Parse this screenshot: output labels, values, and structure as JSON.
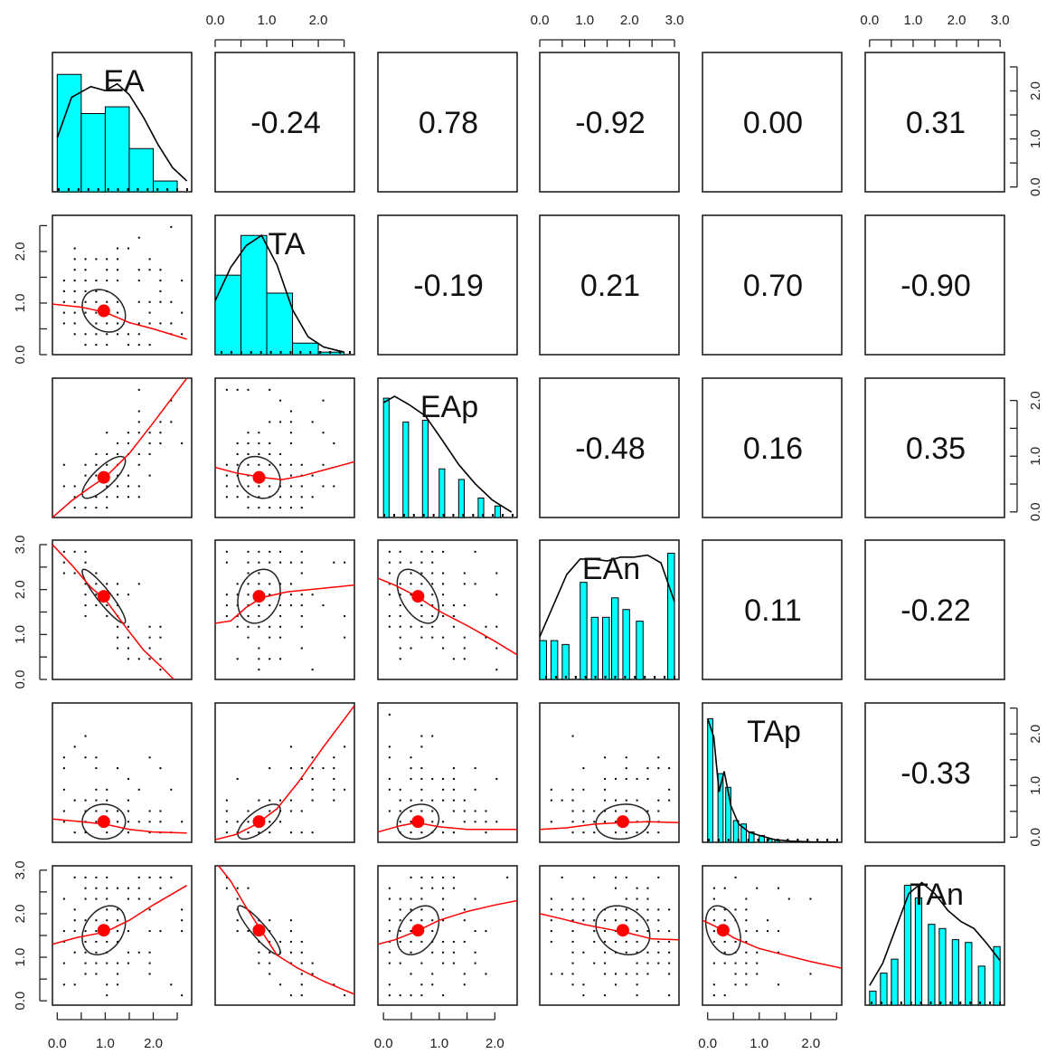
{
  "chart_data": {
    "type": "scatter-matrix",
    "variables": [
      "EA",
      "TA",
      "EAp",
      "EAn",
      "TAp",
      "TAn"
    ],
    "ranges": {
      "EA": [
        -0.1,
        2.8
      ],
      "TA": [
        0.0,
        2.7
      ],
      "EAp": [
        -0.1,
        2.4
      ],
      "EAn": [
        0.0,
        3.1
      ],
      "TAp": [
        -0.1,
        2.6
      ],
      "TAn": [
        -0.1,
        3.1
      ]
    },
    "axis_ticks": {
      "top": {
        "TA": [
          "0.0",
          "1.0",
          "2.0"
        ],
        "EAn": [
          "0.0",
          "1.0",
          "2.0",
          "3.0"
        ],
        "TAn": [
          "0.0",
          "1.0",
          "2.0",
          "3.0"
        ]
      },
      "bottom": {
        "EA": [
          "0.0",
          "1.0",
          "2.0"
        ],
        "EAp": [
          "0.0",
          "1.0",
          "2.0"
        ],
        "TAp": [
          "0.0",
          "1.0",
          "2.0"
        ]
      },
      "left": {
        "TA": [
          "0.0",
          "1.0",
          "2.0"
        ],
        "EAn": [
          "0.0",
          "1.0",
          "2.0",
          "3.0"
        ],
        "TAn": [
          "0.0",
          "1.0",
          "2.0",
          "3.0"
        ]
      },
      "right": {
        "EA": [
          "0.0",
          "1.0",
          "2.0"
        ],
        "EAp": [
          "0.0",
          "1.0",
          "2.0"
        ],
        "TAp": [
          "0.0",
          "1.0",
          "2.0"
        ]
      }
    },
    "correlations": [
      {
        "row": "EA",
        "col": "TA",
        "text": "-0.24",
        "value": -0.24
      },
      {
        "row": "EA",
        "col": "EAp",
        "text": "0.78",
        "value": 0.78
      },
      {
        "row": "EA",
        "col": "EAn",
        "text": "-0.92",
        "value": -0.92
      },
      {
        "row": "EA",
        "col": "TAp",
        "text": "0.00",
        "value": 0.0
      },
      {
        "row": "EA",
        "col": "TAn",
        "text": "0.31",
        "value": 0.31
      },
      {
        "row": "TA",
        "col": "EAp",
        "text": "-0.19",
        "value": -0.19
      },
      {
        "row": "TA",
        "col": "EAn",
        "text": "0.21",
        "value": 0.21
      },
      {
        "row": "TA",
        "col": "TAp",
        "text": "0.70",
        "value": 0.7
      },
      {
        "row": "TA",
        "col": "TAn",
        "text": "-0.90",
        "value": -0.9
      },
      {
        "row": "EAp",
        "col": "EAn",
        "text": "-0.48",
        "value": -0.48
      },
      {
        "row": "EAp",
        "col": "TAp",
        "text": "0.16",
        "value": 0.16
      },
      {
        "row": "EAp",
        "col": "TAn",
        "text": "0.35",
        "value": 0.35
      },
      {
        "row": "EAn",
        "col": "TAp",
        "text": "0.11",
        "value": 0.11
      },
      {
        "row": "EAn",
        "col": "TAn",
        "text": "-0.22",
        "value": -0.22
      },
      {
        "row": "TAp",
        "col": "TAn",
        "text": "-0.33",
        "value": -0.33
      }
    ],
    "histograms": {
      "EA": {
        "breaks": [
          0.0,
          0.5,
          1.0,
          1.5,
          2.0,
          2.5
        ],
        "density": [
          0.87,
          0.58,
          0.63,
          0.32,
          0.08
        ],
        "density_curve": [
          [
            0.0,
            0.4
          ],
          [
            0.3,
            0.7
          ],
          [
            0.7,
            0.78
          ],
          [
            1.0,
            0.75
          ],
          [
            1.25,
            0.8
          ],
          [
            1.5,
            0.72
          ],
          [
            1.8,
            0.55
          ],
          [
            2.1,
            0.35
          ],
          [
            2.4,
            0.18
          ],
          [
            2.7,
            0.08
          ]
        ]
      },
      "TA": {
        "breaks": [
          0.0,
          0.5,
          1.0,
          1.5,
          2.0,
          2.5
        ],
        "density": [
          0.62,
          0.93,
          0.48,
          0.09,
          0.02
        ],
        "density_curve": [
          [
            0.0,
            0.42
          ],
          [
            0.3,
            0.68
          ],
          [
            0.6,
            0.85
          ],
          [
            0.9,
            0.93
          ],
          [
            1.2,
            0.7
          ],
          [
            1.5,
            0.35
          ],
          [
            1.8,
            0.14
          ],
          [
            2.1,
            0.06
          ],
          [
            2.5,
            0.02
          ]
        ]
      },
      "EAp": {
        "breaks": [
          0.0,
          0.1,
          0.35,
          0.45,
          0.7,
          0.8,
          1.0,
          1.1,
          1.35,
          1.45,
          1.7,
          1.8,
          2.0,
          2.1
        ],
        "density": [
          1.35,
          0,
          1.08,
          0,
          1.1,
          0,
          0.55,
          0,
          0.43,
          0,
          0.22,
          0,
          0.13
        ],
        "bars": [
          [
            0.0,
            0.1,
            1.35
          ],
          [
            0.35,
            0.45,
            1.08
          ],
          [
            0.7,
            0.8,
            1.1
          ],
          [
            1.0,
            1.1,
            0.55
          ],
          [
            1.35,
            1.45,
            0.43
          ],
          [
            1.7,
            1.8,
            0.22
          ],
          [
            2.0,
            2.1,
            0.13
          ]
        ],
        "density_curve": [
          [
            0.0,
            1.3
          ],
          [
            0.2,
            1.37
          ],
          [
            0.45,
            1.28
          ],
          [
            0.75,
            1.15
          ],
          [
            1.05,
            0.88
          ],
          [
            1.35,
            0.6
          ],
          [
            1.65,
            0.38
          ],
          [
            1.95,
            0.2
          ],
          [
            2.3,
            0.06
          ]
        ]
      },
      "EAn": {
        "bars": [
          [
            0.0,
            0.15,
            0.2
          ],
          [
            0.25,
            0.4,
            0.2
          ],
          [
            0.5,
            0.65,
            0.18
          ],
          [
            0.9,
            1.05,
            0.5
          ],
          [
            1.15,
            1.3,
            0.32
          ],
          [
            1.4,
            1.55,
            0.32
          ],
          [
            1.6,
            1.75,
            0.42
          ],
          [
            1.85,
            2.0,
            0.36
          ],
          [
            2.15,
            2.3,
            0.3
          ],
          [
            2.85,
            3.0,
            0.65
          ]
        ],
        "density_curve": [
          [
            0.0,
            0.22
          ],
          [
            0.3,
            0.38
          ],
          [
            0.6,
            0.54
          ],
          [
            0.9,
            0.62
          ],
          [
            1.2,
            0.62
          ],
          [
            1.5,
            0.61
          ],
          [
            1.8,
            0.63
          ],
          [
            2.1,
            0.63
          ],
          [
            2.4,
            0.64
          ],
          [
            2.7,
            0.6
          ],
          [
            3.0,
            0.4
          ]
        ]
      },
      "TAp": {
        "bars": [
          [
            0.0,
            0.1,
            5.4
          ],
          [
            0.2,
            0.3,
            3.0
          ],
          [
            0.35,
            0.45,
            2.4
          ],
          [
            0.5,
            0.6,
            0.95
          ],
          [
            0.65,
            0.75,
            0.8
          ],
          [
            0.8,
            0.9,
            0.45
          ],
          [
            1.0,
            1.1,
            0.3
          ],
          [
            1.15,
            1.25,
            0.15
          ],
          [
            1.3,
            1.4,
            0.08
          ]
        ],
        "density_curve": [
          [
            0.0,
            5.4
          ],
          [
            0.12,
            4.6
          ],
          [
            0.22,
            2.2
          ],
          [
            0.32,
            3.1
          ],
          [
            0.45,
            1.6
          ],
          [
            0.6,
            0.8
          ],
          [
            0.8,
            0.45
          ],
          [
            1.0,
            0.3
          ],
          [
            1.3,
            0.12
          ],
          [
            1.6,
            0.05
          ],
          [
            2.0,
            0.02
          ],
          [
            2.5,
            0.01
          ]
        ]
      },
      "TAn": {
        "bars": [
          [
            0.0,
            0.15,
            0.1
          ],
          [
            0.25,
            0.4,
            0.23
          ],
          [
            0.5,
            0.65,
            0.33
          ],
          [
            0.8,
            0.95,
            0.86
          ],
          [
            1.05,
            1.2,
            0.77
          ],
          [
            1.35,
            1.5,
            0.58
          ],
          [
            1.6,
            1.75,
            0.55
          ],
          [
            1.9,
            2.05,
            0.47
          ],
          [
            2.2,
            2.35,
            0.45
          ],
          [
            2.5,
            2.65,
            0.28
          ],
          [
            2.85,
            3.0,
            0.42
          ]
        ],
        "density_curve": [
          [
            0.0,
            0.14
          ],
          [
            0.3,
            0.3
          ],
          [
            0.6,
            0.55
          ],
          [
            0.9,
            0.8
          ],
          [
            1.2,
            0.88
          ],
          [
            1.5,
            0.8
          ],
          [
            1.8,
            0.68
          ],
          [
            2.1,
            0.6
          ],
          [
            2.4,
            0.55
          ],
          [
            2.7,
            0.44
          ],
          [
            3.0,
            0.32
          ]
        ]
      }
    },
    "hist_ymax": {
      "EA": 0.95,
      "TA": 1.0,
      "EAp": 1.45,
      "EAn": 0.66,
      "TAp": 5.6,
      "TAn": 0.92
    },
    "means": {
      "EA": 0.97,
      "TA": 0.85,
      "EAp": 0.62,
      "EAn": 1.85,
      "TAp": 0.3,
      "TAn": 1.62
    },
    "sds": {
      "EA": 0.6,
      "TA": 0.55,
      "EAp": 0.5,
      "EAn": 0.8,
      "TAp": 0.45,
      "TAn": 0.75
    },
    "correlation_matrix": [
      [
        1.0,
        -0.24,
        0.78,
        -0.92,
        0.0,
        0.31
      ],
      [
        -0.24,
        1.0,
        -0.19,
        0.21,
        0.7,
        -0.9
      ],
      [
        0.78,
        -0.19,
        1.0,
        -0.48,
        0.16,
        0.35
      ],
      [
        -0.92,
        0.21,
        -0.48,
        1.0,
        0.11,
        -0.22
      ],
      [
        0.0,
        0.7,
        0.16,
        0.11,
        1.0,
        -0.33
      ],
      [
        0.31,
        -0.9,
        0.35,
        -0.22,
        -0.33,
        1.0
      ]
    ],
    "loess_curves": {
      "TA|EA": [
        [
          -0.1,
          0.98
        ],
        [
          0.5,
          0.92
        ],
        [
          1.0,
          0.82
        ],
        [
          1.5,
          0.62
        ],
        [
          2.0,
          0.5
        ],
        [
          2.7,
          0.3
        ]
      ],
      "EAp|EA": [
        [
          -0.1,
          -0.1
        ],
        [
          0.3,
          0.2
        ],
        [
          0.7,
          0.45
        ],
        [
          1.0,
          0.62
        ],
        [
          1.5,
          1.05
        ],
        [
          2.0,
          1.6
        ],
        [
          2.7,
          2.4
        ]
      ],
      "EAp|TA": [
        [
          0.0,
          0.8
        ],
        [
          0.4,
          0.7
        ],
        [
          0.9,
          0.62
        ],
        [
          1.3,
          0.58
        ],
        [
          1.7,
          0.65
        ],
        [
          2.1,
          0.75
        ],
        [
          2.7,
          0.9
        ]
      ],
      "EAn|EA": [
        [
          -0.1,
          3.0
        ],
        [
          0.3,
          2.55
        ],
        [
          0.7,
          2.05
        ],
        [
          1.0,
          1.78
        ],
        [
          1.4,
          1.2
        ],
        [
          1.8,
          0.65
        ],
        [
          2.2,
          0.25
        ],
        [
          2.7,
          -0.3
        ]
      ],
      "EAn|TA": [
        [
          0.0,
          1.25
        ],
        [
          0.3,
          1.3
        ],
        [
          0.6,
          1.6
        ],
        [
          0.9,
          1.82
        ],
        [
          1.4,
          1.95
        ],
        [
          2.0,
          2.02
        ],
        [
          2.7,
          2.1
        ]
      ],
      "EAn|EAp": [
        [
          -0.1,
          2.25
        ],
        [
          0.2,
          2.1
        ],
        [
          0.6,
          1.85
        ],
        [
          1.0,
          1.52
        ],
        [
          1.5,
          1.2
        ],
        [
          2.0,
          0.85
        ],
        [
          2.4,
          0.55
        ]
      ],
      "TAp|EA": [
        [
          -0.1,
          0.35
        ],
        [
          0.5,
          0.3
        ],
        [
          1.0,
          0.25
        ],
        [
          1.5,
          0.15
        ],
        [
          2.0,
          0.1
        ],
        [
          2.7,
          0.08
        ]
      ],
      "TAp|TA": [
        [
          0.0,
          -0.05
        ],
        [
          0.4,
          0.05
        ],
        [
          0.8,
          0.25
        ],
        [
          1.2,
          0.55
        ],
        [
          1.6,
          1.05
        ],
        [
          2.1,
          1.75
        ],
        [
          2.7,
          2.55
        ]
      ],
      "TAp|EAp": [
        [
          -0.1,
          0.1
        ],
        [
          0.3,
          0.22
        ],
        [
          0.6,
          0.28
        ],
        [
          1.0,
          0.2
        ],
        [
          1.5,
          0.15
        ],
        [
          2.0,
          0.15
        ],
        [
          2.4,
          0.15
        ]
      ],
      "TAp|EAn": [
        [
          0.0,
          0.15
        ],
        [
          0.6,
          0.18
        ],
        [
          1.2,
          0.25
        ],
        [
          1.8,
          0.28
        ],
        [
          2.4,
          0.3
        ],
        [
          3.1,
          0.28
        ]
      ],
      "TAn|EA": [
        [
          -0.1,
          1.3
        ],
        [
          0.4,
          1.45
        ],
        [
          1.0,
          1.58
        ],
        [
          1.5,
          1.85
        ],
        [
          2.0,
          2.2
        ],
        [
          2.7,
          2.65
        ]
      ],
      "TAn|TA": [
        [
          0.0,
          3.2
        ],
        [
          0.3,
          2.75
        ],
        [
          0.6,
          2.15
        ],
        [
          0.9,
          1.6
        ],
        [
          1.2,
          1.05
        ],
        [
          1.6,
          0.75
        ],
        [
          2.1,
          0.45
        ],
        [
          2.7,
          0.15
        ]
      ],
      "TAn|EAp": [
        [
          -0.1,
          1.3
        ],
        [
          0.2,
          1.4
        ],
        [
          0.6,
          1.6
        ],
        [
          1.0,
          1.85
        ],
        [
          1.5,
          2.05
        ],
        [
          2.0,
          2.2
        ],
        [
          2.4,
          2.3
        ]
      ],
      "TAn|EAn": [
        [
          0.0,
          2.0
        ],
        [
          0.5,
          1.88
        ],
        [
          1.0,
          1.75
        ],
        [
          1.5,
          1.65
        ],
        [
          2.0,
          1.55
        ],
        [
          2.5,
          1.42
        ],
        [
          3.1,
          1.4
        ]
      ],
      "TAn|TAp": [
        [
          -0.1,
          1.85
        ],
        [
          0.2,
          1.68
        ],
        [
          0.5,
          1.45
        ],
        [
          1.0,
          1.2
        ],
        [
          1.5,
          1.05
        ],
        [
          2.0,
          0.9
        ],
        [
          2.6,
          0.75
        ]
      ]
    },
    "colors": {
      "hist_fill": "#00FFFF",
      "hist_stroke": "#000000",
      "density_line": "#000000",
      "fit_line": "#FF0000",
      "mean_point": "#FF0000",
      "ellipse": "#222222",
      "points": "#000000"
    }
  }
}
